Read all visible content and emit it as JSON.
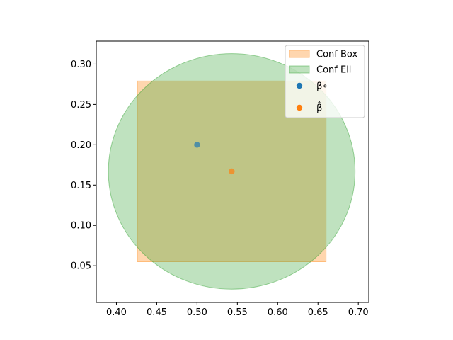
{
  "chart_data": {
    "type": "scatter",
    "title": "",
    "xlabel": "",
    "ylabel": "",
    "xlim": [
      0.375,
      0.713
    ],
    "ylim": [
      0.0045,
      0.3285
    ],
    "xticks": [
      0.4,
      0.45,
      0.5,
      0.55,
      0.6,
      0.65,
      0.7
    ],
    "yticks": [
      0.05,
      0.1,
      0.15,
      0.2,
      0.25,
      0.3
    ],
    "xtick_labels": [
      "0.40",
      "0.45",
      "0.50",
      "0.55",
      "0.60",
      "0.65",
      "0.70"
    ],
    "ytick_labels": [
      "0.05",
      "0.10",
      "0.15",
      "0.20",
      "0.25",
      "0.30"
    ],
    "grid": false,
    "legend_position": "upper right",
    "conf_box": {
      "name": "Conf Box",
      "x": [
        0.426,
        0.66
      ],
      "y": [
        0.055,
        0.279
      ],
      "color": "#ffbb78"
    },
    "conf_ellipse": {
      "name": "Conf Ell",
      "center": [
        0.543,
        0.167
      ],
      "half_width": 0.153,
      "half_height": 0.146,
      "color": "#2ca02c"
    },
    "points": [
      {
        "name": "β∘",
        "x": 0.5,
        "y": 0.2,
        "color": "#1f77b4"
      },
      {
        "name": "β̂",
        "x": 0.543,
        "y": 0.167,
        "color": "#ff7f0e"
      }
    ]
  }
}
